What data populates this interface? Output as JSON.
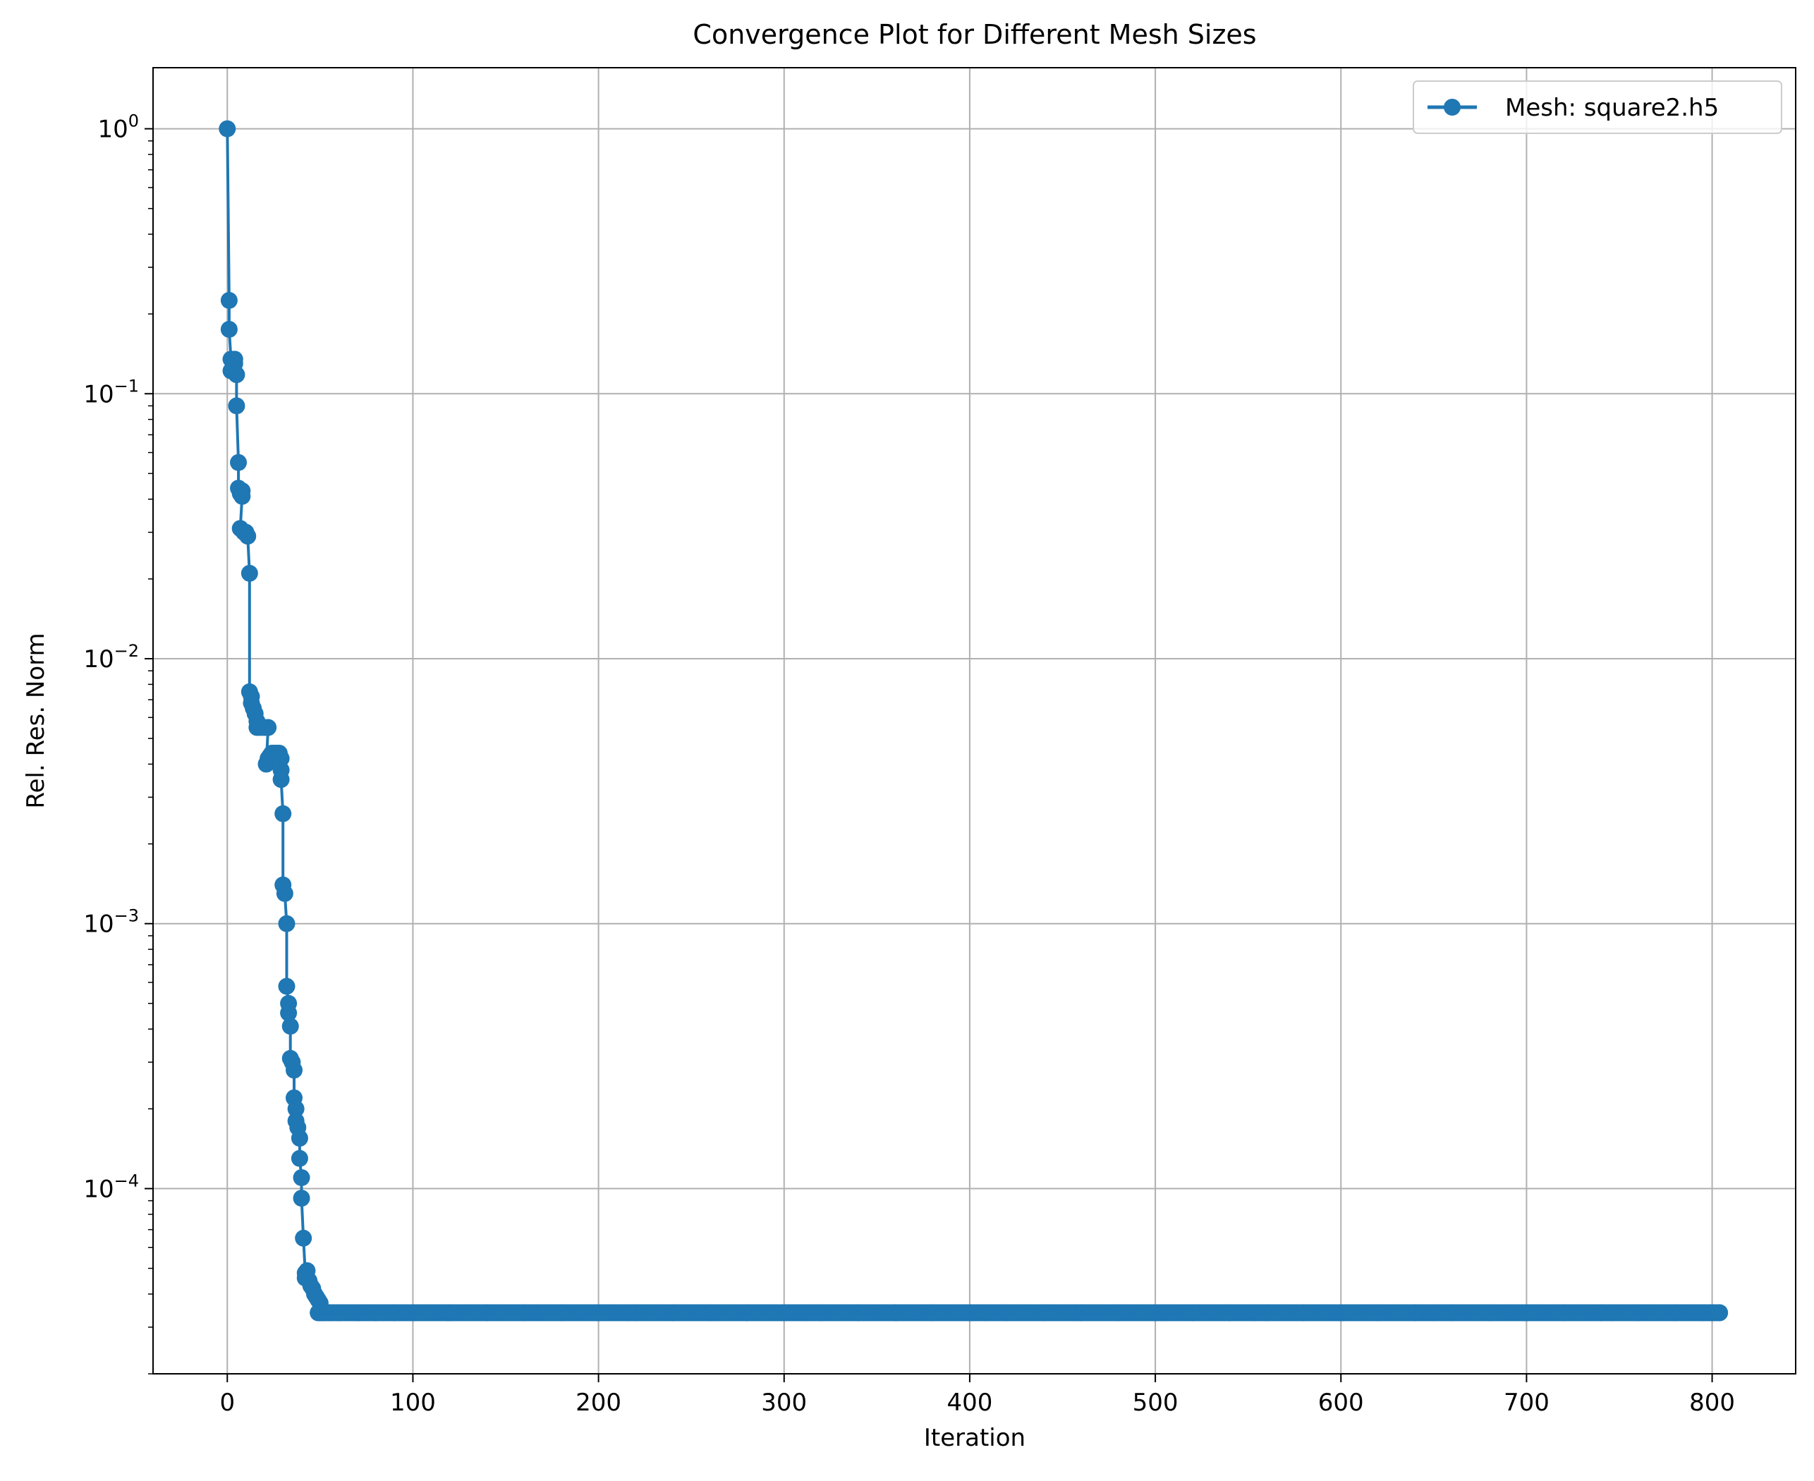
{
  "chart_data": {
    "type": "line",
    "title": "Convergence Plot for Different Mesh Sizes",
    "xlabel": "Iteration",
    "ylabel": "Rel. Res. Norm",
    "xlim": [
      -40,
      845
    ],
    "ylim": [
      2e-05,
      1.7
    ],
    "yscale": "log",
    "grid": true,
    "legend_position": "top-right",
    "x_ticks": [
      0,
      100,
      200,
      300,
      400,
      500,
      600,
      700,
      800
    ],
    "y_ticks": [
      {
        "value": 1,
        "base": "10",
        "exp": "0"
      },
      {
        "value": 0.1,
        "base": "10",
        "exp": "−1"
      },
      {
        "value": 0.01,
        "base": "10",
        "exp": "−2"
      },
      {
        "value": 0.001,
        "base": "10",
        "exp": "−3"
      },
      {
        "value": 0.0001,
        "base": "10",
        "exp": "−4"
      }
    ],
    "series": [
      {
        "name": "Mesh: square2.h5",
        "color": "#1f77b4",
        "marker": "circle",
        "points": [
          [
            0,
            1.0
          ],
          [
            1,
            0.225
          ],
          [
            1,
            0.175
          ],
          [
            2,
            0.135
          ],
          [
            2,
            0.122
          ],
          [
            3,
            0.125
          ],
          [
            4,
            0.135
          ],
          [
            4,
            0.13
          ],
          [
            5,
            0.118
          ],
          [
            5,
            0.09
          ],
          [
            6,
            0.055
          ],
          [
            6,
            0.044
          ],
          [
            7,
            0.042
          ],
          [
            8,
            0.043
          ],
          [
            8,
            0.041
          ],
          [
            7,
            0.031
          ],
          [
            9,
            0.03
          ],
          [
            10,
            0.03
          ],
          [
            11,
            0.029
          ],
          [
            12,
            0.021
          ],
          [
            12,
            0.0075
          ],
          [
            13,
            0.0072
          ],
          [
            13,
            0.0068
          ],
          [
            14,
            0.0065
          ],
          [
            15,
            0.0062
          ],
          [
            16,
            0.0058
          ],
          [
            16,
            0.0055
          ],
          [
            18,
            0.0055
          ],
          [
            20,
            0.0055
          ],
          [
            22,
            0.0055
          ],
          [
            21,
            0.004
          ],
          [
            22,
            0.0042
          ],
          [
            23,
            0.0043
          ],
          [
            24,
            0.0044
          ],
          [
            25,
            0.0044
          ],
          [
            26,
            0.0044
          ],
          [
            27,
            0.0044
          ],
          [
            28,
            0.0044
          ],
          [
            29,
            0.0042
          ],
          [
            29,
            0.0038
          ],
          [
            29,
            0.0035
          ],
          [
            30,
            0.0026
          ],
          [
            30,
            0.0014
          ],
          [
            31,
            0.0013
          ],
          [
            32,
            0.001
          ],
          [
            32,
            0.00058
          ],
          [
            33,
            0.0005
          ],
          [
            33,
            0.00046
          ],
          [
            34,
            0.00041
          ],
          [
            34,
            0.00031
          ],
          [
            35,
            0.0003
          ],
          [
            36,
            0.00028
          ],
          [
            36,
            0.00022
          ],
          [
            37,
            0.0002
          ],
          [
            37,
            0.00018
          ],
          [
            38,
            0.00017
          ],
          [
            39,
            0.000155
          ],
          [
            39,
            0.00013
          ],
          [
            40,
            0.00011
          ],
          [
            40,
            9.2e-05
          ],
          [
            41,
            6.5e-05
          ],
          [
            42,
            4.8e-05
          ],
          [
            42,
            4.6e-05
          ],
          [
            43,
            4.9e-05
          ],
          [
            44,
            4.5e-05
          ],
          [
            45,
            4.3e-05
          ],
          [
            46,
            4.2e-05
          ],
          [
            47,
            4e-05
          ],
          [
            48,
            3.9e-05
          ],
          [
            49,
            3.8e-05
          ],
          [
            50,
            3.7e-05
          ],
          [
            49,
            3.4e-05
          ],
          [
            50,
            3.4e-05
          ],
          [
            52,
            3.4e-05
          ],
          [
            55,
            3.4e-05
          ],
          [
            60,
            3.4e-05
          ],
          [
            70,
            3.4e-05
          ],
          [
            80,
            3.4e-05
          ],
          [
            90,
            3.4e-05
          ],
          [
            100,
            3.4e-05
          ],
          [
            120,
            3.4e-05
          ],
          [
            140,
            3.4e-05
          ],
          [
            160,
            3.4e-05
          ],
          [
            180,
            3.4e-05
          ],
          [
            200,
            3.4e-05
          ],
          [
            220,
            3.4e-05
          ],
          [
            240,
            3.4e-05
          ],
          [
            260,
            3.4e-05
          ],
          [
            280,
            3.4e-05
          ],
          [
            300,
            3.4e-05
          ],
          [
            320,
            3.4e-05
          ],
          [
            340,
            3.4e-05
          ],
          [
            360,
            3.4e-05
          ],
          [
            380,
            3.4e-05
          ],
          [
            400,
            3.4e-05
          ],
          [
            420,
            3.4e-05
          ],
          [
            440,
            3.4e-05
          ],
          [
            460,
            3.4e-05
          ],
          [
            480,
            3.4e-05
          ],
          [
            500,
            3.4e-05
          ],
          [
            520,
            3.4e-05
          ],
          [
            540,
            3.4e-05
          ],
          [
            560,
            3.4e-05
          ],
          [
            580,
            3.4e-05
          ],
          [
            600,
            3.4e-05
          ],
          [
            620,
            3.4e-05
          ],
          [
            640,
            3.4e-05
          ],
          [
            660,
            3.4e-05
          ],
          [
            680,
            3.4e-05
          ],
          [
            700,
            3.4e-05
          ],
          [
            720,
            3.4e-05
          ],
          [
            740,
            3.4e-05
          ],
          [
            760,
            3.4e-05
          ],
          [
            780,
            3.4e-05
          ],
          [
            800,
            3.4e-05
          ],
          [
            804,
            3.4e-05
          ]
        ],
        "dense_range": {
          "from": 49,
          "to": 804,
          "value": 3.4e-05
        }
      }
    ]
  }
}
